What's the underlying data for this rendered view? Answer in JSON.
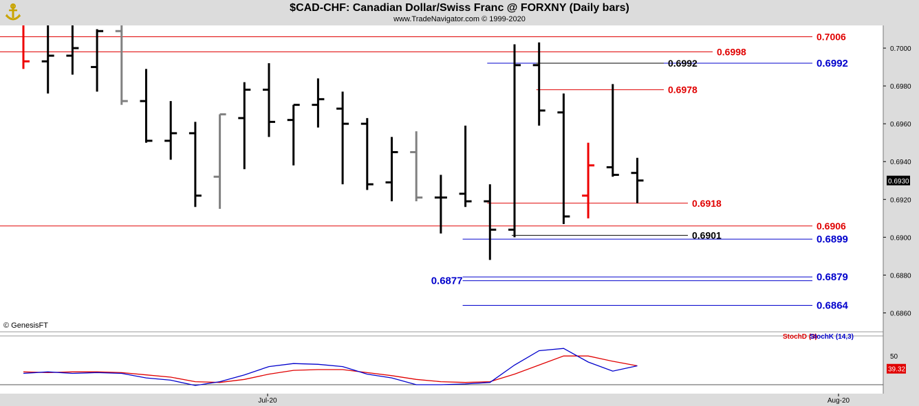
{
  "header": {
    "title": "$CAD-CHF:  Canadian Dollar/Swiss Franc @ FORXNY  (Daily bars)",
    "subtitle": "www.TradeNavigator.com © 1999-2020",
    "copyright": "© GenesisFT"
  },
  "icons": {
    "logo": "gold-anchor-logo-icon"
  },
  "colors": {
    "bar_black": "#000000",
    "bar_gray": "#808080",
    "bar_red": "#ee0000",
    "level_red": "#e00000",
    "level_blue": "#0000cc",
    "stoch_d": "#e00000",
    "stoch_k": "#0000cc",
    "axis_bg": "#dcdcdc"
  },
  "chart_data": [
    {
      "type": "ohlc",
      "title": "$CAD-CHF:  Canadian Dollar/Swiss Franc @ FORXNY  (Daily bars)",
      "ylim": [
        0.685,
        0.7012
      ],
      "y_ticks": [
        "0.7000",
        "0.6980",
        "0.6960",
        "0.6940",
        "0.6920",
        "0.6900",
        "0.6880",
        "0.6860"
      ],
      "x_ticks": [
        "Jul-20",
        "Aug-20"
      ],
      "last_price": "0.6930",
      "bars": [
        {
          "o": null,
          "h": 0.7012,
          "l": 0.6989,
          "c": 0.6993,
          "color": "red"
        },
        {
          "o": 0.6993,
          "h": 0.7012,
          "l": 0.6976,
          "c": 0.6996,
          "color": "black"
        },
        {
          "o": 0.6996,
          "h": 0.7012,
          "l": 0.6986,
          "c": 0.7,
          "color": "black"
        },
        {
          "o": 0.699,
          "h": 0.701,
          "l": 0.6977,
          "c": 0.7009,
          "color": "black"
        },
        {
          "o": 0.7009,
          "h": 0.7012,
          "l": 0.697,
          "c": 0.6972,
          "color": "gray"
        },
        {
          "o": 0.6972,
          "h": 0.6989,
          "l": 0.695,
          "c": 0.6951,
          "color": "black"
        },
        {
          "o": 0.6951,
          "h": 0.6972,
          "l": 0.6941,
          "c": 0.6955,
          "color": "black"
        },
        {
          "o": 0.6955,
          "h": 0.6961,
          "l": 0.6916,
          "c": 0.6922,
          "color": "black"
        },
        {
          "o": 0.6932,
          "h": 0.6965,
          "l": 0.6915,
          "c": 0.6965,
          "color": "gray"
        },
        {
          "o": 0.6963,
          "h": 0.6982,
          "l": 0.6936,
          "c": 0.6978,
          "color": "black"
        },
        {
          "o": 0.6978,
          "h": 0.6992,
          "l": 0.6953,
          "c": 0.6961,
          "color": "black"
        },
        {
          "o": 0.6962,
          "h": 0.697,
          "l": 0.6938,
          "c": 0.697,
          "color": "black"
        },
        {
          "o": 0.697,
          "h": 0.6984,
          "l": 0.6958,
          "c": 0.6973,
          "color": "black"
        },
        {
          "o": 0.6968,
          "h": 0.6977,
          "l": 0.6928,
          "c": 0.696,
          "color": "black"
        },
        {
          "o": 0.696,
          "h": 0.6963,
          "l": 0.6925,
          "c": 0.6928,
          "color": "black"
        },
        {
          "o": 0.6929,
          "h": 0.6953,
          "l": 0.6919,
          "c": 0.6945,
          "color": "black"
        },
        {
          "o": 0.6945,
          "h": 0.6956,
          "l": 0.6919,
          "c": 0.6921,
          "color": "gray"
        },
        {
          "o": 0.6921,
          "h": 0.6933,
          "l": 0.6902,
          "c": 0.6921,
          "color": "black"
        },
        {
          "o": 0.6923,
          "h": 0.6959,
          "l": 0.6916,
          "c": 0.6919,
          "color": "black"
        },
        {
          "o": 0.6919,
          "h": 0.6928,
          "l": 0.6888,
          "c": 0.6904,
          "color": "black"
        },
        {
          "o": 0.6904,
          "h": 0.7002,
          "l": 0.69,
          "c": 0.6991,
          "color": "black"
        },
        {
          "o": 0.6991,
          "h": 0.7003,
          "l": 0.6959,
          "c": 0.6967,
          "color": "black"
        },
        {
          "o": 0.6966,
          "h": 0.6976,
          "l": 0.6907,
          "c": 0.6911,
          "color": "black"
        },
        {
          "o": 0.6922,
          "h": 0.695,
          "l": 0.691,
          "c": 0.6938,
          "color": "red"
        },
        {
          "o": 0.6937,
          "h": 0.6981,
          "l": 0.6932,
          "c": 0.6933,
          "color": "black"
        },
        {
          "o": 0.6934,
          "h": 0.6942,
          "l": 0.6918,
          "c": 0.693,
          "color": "black"
        }
      ],
      "levels": [
        {
          "value": 0.7006,
          "label": "0.7006",
          "color": "red",
          "start_bar": 0,
          "end": "long"
        },
        {
          "value": 0.6998,
          "label": "0.6998",
          "color": "red",
          "start_bar": 0,
          "end": "mid"
        },
        {
          "value": 0.6992,
          "label": "0.6992",
          "color": "blue",
          "start_bar": 19,
          "end": "long"
        },
        {
          "value": 0.6992,
          "label": "0.6992",
          "color": "black",
          "start_bar": 21,
          "end": "short"
        },
        {
          "value": 0.6978,
          "label": "0.6978",
          "color": "red",
          "start_bar": 21,
          "end": "short"
        },
        {
          "value": 0.6918,
          "label": "0.6918",
          "color": "red",
          "start_bar": 19,
          "end": "mid2"
        },
        {
          "value": 0.6906,
          "label": "0.6906",
          "color": "red",
          "start_bar": 0,
          "end": "long"
        },
        {
          "value": 0.6901,
          "label": "0.6901",
          "color": "black",
          "start_bar": 20,
          "end": "mid2"
        },
        {
          "value": 0.6899,
          "label": "0.6899",
          "color": "blue",
          "start_bar": 18,
          "end": "long"
        },
        {
          "value": 0.6879,
          "label": "0.6879",
          "color": "blue",
          "start_bar": 18,
          "end": "long"
        },
        {
          "value": 0.6877,
          "label": "0.6877",
          "color": "blue",
          "start_bar": 18,
          "end": "long",
          "label_side": "left"
        },
        {
          "value": 0.6864,
          "label": "0.6864",
          "color": "blue",
          "start_bar": 18,
          "end": "long"
        }
      ]
    },
    {
      "type": "line",
      "legend": [
        "StochD (3)",
        "StochK (14,3)"
      ],
      "ylim": [
        0,
        100
      ],
      "y_ticks": [
        "50"
      ],
      "last_value": "39.32",
      "series": [
        {
          "name": "StochD (3)",
          "color": "red",
          "x": [
            0,
            1,
            2,
            3,
            4,
            5,
            6,
            7,
            8,
            9,
            10,
            11,
            12,
            13,
            14,
            15,
            16,
            17,
            18,
            19,
            20,
            21,
            22,
            23,
            24,
            25
          ],
          "values": [
            37,
            36,
            37,
            37,
            36,
            33,
            30,
            24,
            23,
            27,
            34,
            39,
            40,
            40,
            36,
            32,
            27,
            24,
            23,
            24,
            34,
            46,
            58,
            58,
            51,
            45
          ]
        },
        {
          "name": "StochK (14,3)",
          "color": "blue",
          "x": [
            0,
            1,
            2,
            3,
            4,
            5,
            6,
            7,
            8,
            9,
            10,
            11,
            12,
            13,
            14,
            15,
            16,
            17,
            18,
            19,
            20,
            21,
            22,
            23,
            24,
            25
          ],
          "values": [
            35,
            37,
            35,
            36,
            35,
            29,
            26,
            19,
            24,
            33,
            44,
            48,
            47,
            44,
            34,
            29,
            20,
            20,
            21,
            23,
            46,
            65,
            68,
            50,
            38,
            45
          ]
        }
      ]
    }
  ]
}
